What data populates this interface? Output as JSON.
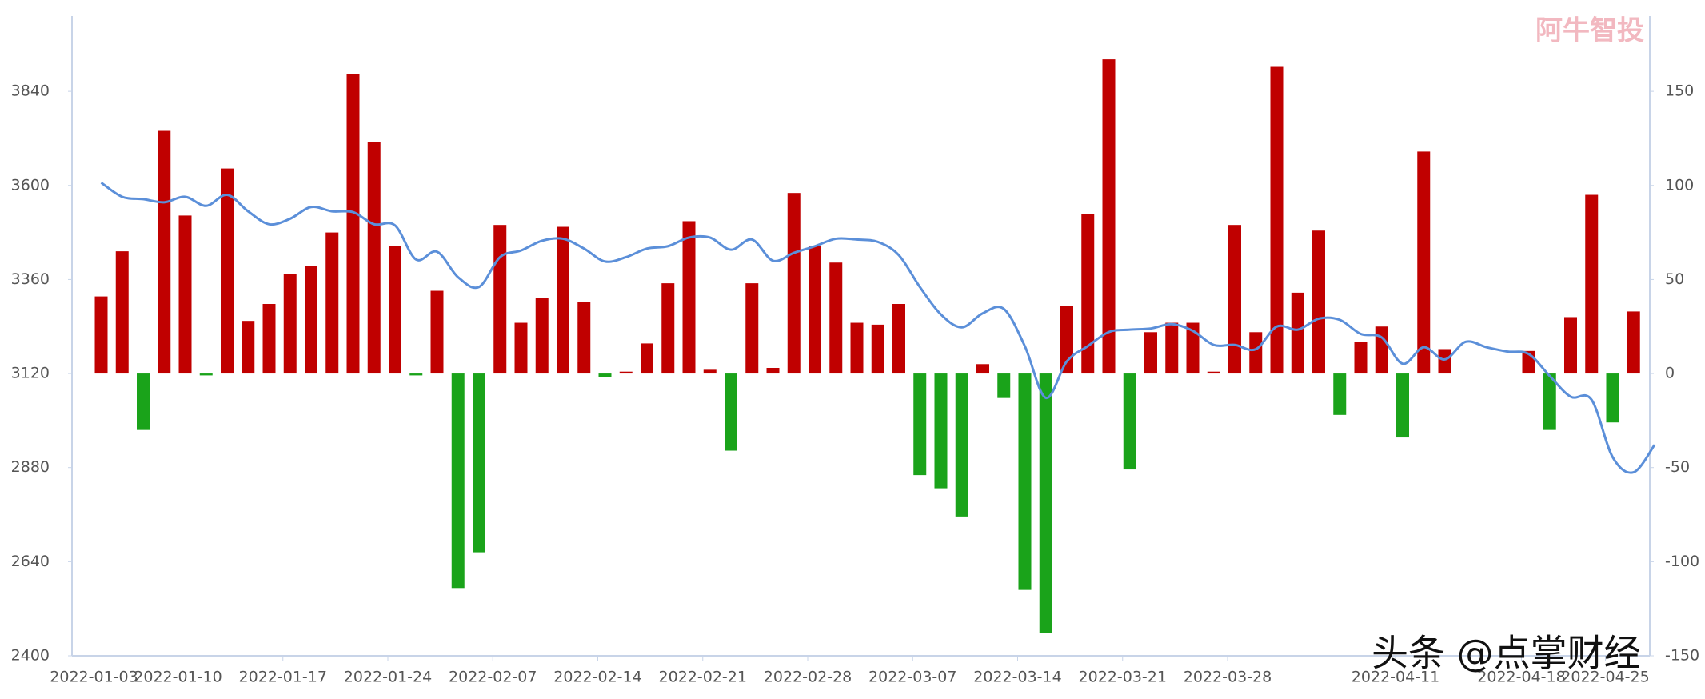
{
  "chart_data": {
    "type": "bar_line",
    "categories": [
      "2022-01-03",
      null,
      null,
      null,
      "2022-01-10",
      null,
      null,
      null,
      null,
      "2022-01-17",
      null,
      null,
      null,
      null,
      "2022-01-24",
      null,
      null,
      null,
      null,
      "2022-02-07",
      null,
      null,
      null,
      null,
      "2022-02-14",
      null,
      null,
      null,
      null,
      "2022-02-21",
      null,
      null,
      null,
      null,
      "2022-02-28",
      null,
      null,
      null,
      null,
      "2022-03-07",
      null,
      null,
      null,
      null,
      "2022-03-14",
      null,
      null,
      null,
      null,
      "2022-03-21",
      null,
      null,
      null,
      null,
      "2022-03-28",
      null,
      null,
      null,
      null,
      null,
      null,
      null,
      "2022-04-11",
      null,
      null,
      null,
      null,
      null,
      "2022-04-18",
      null,
      null,
      null,
      "2022-04-25",
      null,
      null
    ],
    "series": [
      {
        "type": "bar",
        "axis": "y2",
        "color": "#c00000",
        "negative_color": "#1aa31a",
        "values": [
          41,
          65,
          -30,
          129,
          84,
          -1,
          109,
          28,
          37,
          53,
          57,
          75,
          159,
          123,
          68,
          -1,
          44,
          -114,
          -95,
          79,
          27,
          40,
          78,
          38,
          -2,
          1,
          16,
          48,
          81,
          2,
          -41,
          48,
          3,
          96,
          68,
          59,
          27,
          26,
          37,
          -54,
          -61,
          -76,
          5,
          -13,
          -115,
          -138,
          36,
          85,
          167,
          -51,
          22,
          27,
          27,
          1,
          79,
          22,
          163,
          43,
          76,
          -22,
          17,
          25,
          -34,
          118,
          13,
          null,
          null,
          null,
          12,
          -30,
          30,
          95,
          -26,
          33,
          null
        ]
      },
      {
        "type": "line",
        "axis": "y",
        "color": "#5b8fd9",
        "values": [
          3607,
          3571,
          3565,
          3557,
          3571,
          3548,
          3576,
          3534,
          3501,
          3515,
          3545,
          3534,
          3532,
          3501,
          3498,
          3411,
          3431,
          3366,
          3341,
          3417,
          3434,
          3459,
          3464,
          3439,
          3406,
          3417,
          3439,
          3445,
          3467,
          3467,
          3436,
          3462,
          3408,
          3428,
          3445,
          3464,
          3462,
          3456,
          3422,
          3341,
          3271,
          3238,
          3274,
          3285,
          3190,
          3058,
          3151,
          3190,
          3226,
          3232,
          3235,
          3246,
          3229,
          3193,
          3193,
          3182,
          3240,
          3232,
          3260,
          3257,
          3221,
          3212,
          3145,
          3187,
          3156,
          3201,
          3187,
          3176,
          3170,
          3114,
          3061,
          3053,
          2907,
          2868,
          2938
        ]
      }
    ],
    "ylim": [
      2400,
      4032
    ],
    "yticks": [
      2400,
      2640,
      2880,
      3120,
      3360,
      3600,
      3840
    ],
    "y2lim": [
      -150,
      190
    ],
    "y2ticks": [
      -150,
      -100,
      -50,
      0,
      50,
      100,
      150
    ],
    "watermarks": [
      "阿牛智投",
      "头条 @点掌财经"
    ]
  }
}
